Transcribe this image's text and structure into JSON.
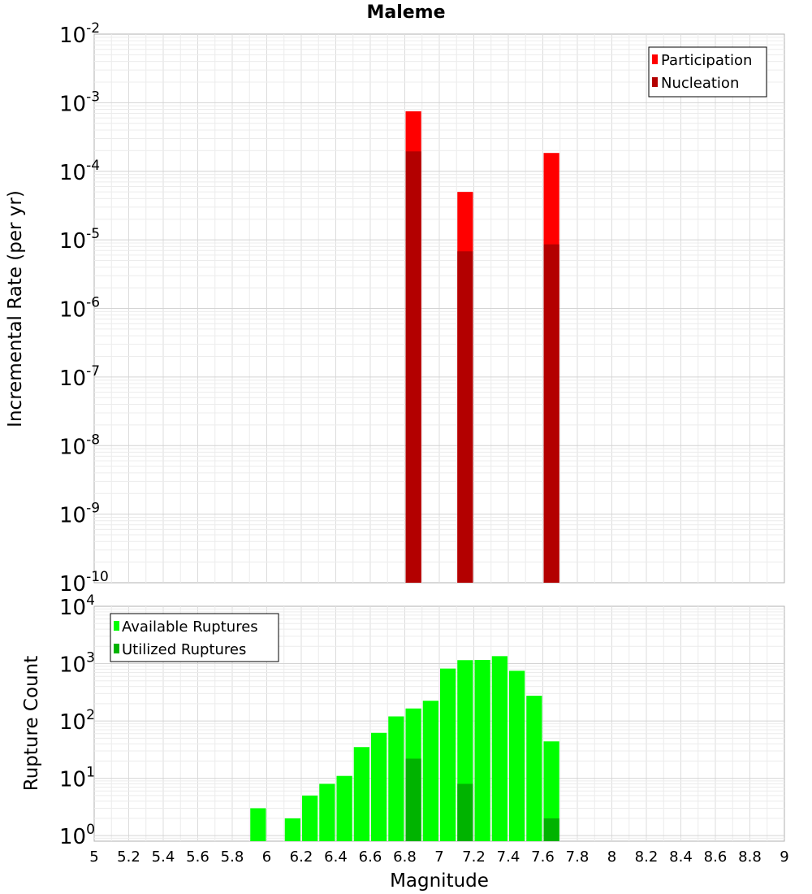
{
  "chart_data": [
    {
      "type": "bar",
      "title": "Maleme",
      "ylabel": "Incremental Rate (per yr)",
      "xlabel": "",
      "yscale": "log",
      "ylim": [
        1e-10,
        0.01
      ],
      "xlim": [
        5,
        9
      ],
      "bar_width": 0.1,
      "grid": true,
      "legend_position": "top-right",
      "y_ticks": [
        {
          "base": "10",
          "exp": "-10"
        },
        {
          "base": "10",
          "exp": "-9"
        },
        {
          "base": "10",
          "exp": "-8"
        },
        {
          "base": "10",
          "exp": "-7"
        },
        {
          "base": "10",
          "exp": "-6"
        },
        {
          "base": "10",
          "exp": "-5"
        },
        {
          "base": "10",
          "exp": "-4"
        },
        {
          "base": "10",
          "exp": "-3"
        },
        {
          "base": "10",
          "exp": "-2"
        }
      ],
      "series": [
        {
          "name": "Participation",
          "color": "#ff0000",
          "points": [
            {
              "x": 6.85,
              "y": 0.00075
            },
            {
              "x": 7.15,
              "y": 5e-05
            },
            {
              "x": 7.65,
              "y": 0.000185
            }
          ]
        },
        {
          "name": "Nucleation",
          "color": "#b30000",
          "points": [
            {
              "x": 6.85,
              "y": 0.000195
            },
            {
              "x": 7.15,
              "y": 6.8e-06
            },
            {
              "x": 7.65,
              "y": 8.6e-06
            }
          ]
        }
      ]
    },
    {
      "type": "bar",
      "title": "",
      "ylabel": "Rupture Count",
      "xlabel": "Magnitude",
      "yscale": "log",
      "ylim": [
        0.8,
        10000
      ],
      "xlim": [
        5,
        9
      ],
      "bar_width": 0.1,
      "grid": true,
      "legend_position": "top-left",
      "x_ticks": [
        "5",
        "5.2",
        "5.4",
        "5.6",
        "5.8",
        "6",
        "6.2",
        "6.4",
        "6.6",
        "6.8",
        "7",
        "7.2",
        "7.4",
        "7.6",
        "7.8",
        "8",
        "8.2",
        "8.4",
        "8.6",
        "8.8",
        "9"
      ],
      "y_ticks": [
        {
          "base": "10",
          "exp": "0",
          "value": 1
        },
        {
          "base": "10",
          "exp": "1",
          "value": 10
        },
        {
          "base": "10",
          "exp": "2",
          "value": 100
        },
        {
          "base": "10",
          "exp": "3",
          "value": 1000
        },
        {
          "base": "10",
          "exp": "4",
          "value": 10000
        }
      ],
      "series": [
        {
          "name": "Available Ruptures",
          "color": "#00ff00",
          "points": [
            {
              "x": 5.95,
              "y": 3
            },
            {
              "x": 6.15,
              "y": 2
            },
            {
              "x": 6.25,
              "y": 5
            },
            {
              "x": 6.35,
              "y": 8
            },
            {
              "x": 6.45,
              "y": 11
            },
            {
              "x": 6.55,
              "y": 35
            },
            {
              "x": 6.65,
              "y": 62
            },
            {
              "x": 6.75,
              "y": 120
            },
            {
              "x": 6.85,
              "y": 165
            },
            {
              "x": 6.95,
              "y": 225
            },
            {
              "x": 7.05,
              "y": 820
            },
            {
              "x": 7.15,
              "y": 1150
            },
            {
              "x": 7.25,
              "y": 1160
            },
            {
              "x": 7.35,
              "y": 1350
            },
            {
              "x": 7.45,
              "y": 750
            },
            {
              "x": 7.55,
              "y": 275
            },
            {
              "x": 7.65,
              "y": 44
            }
          ]
        },
        {
          "name": "Utilized Ruptures",
          "color": "#00b300",
          "points": [
            {
              "x": 6.85,
              "y": 22
            },
            {
              "x": 7.15,
              "y": 8
            },
            {
              "x": 7.65,
              "y": 2
            }
          ]
        }
      ]
    }
  ]
}
